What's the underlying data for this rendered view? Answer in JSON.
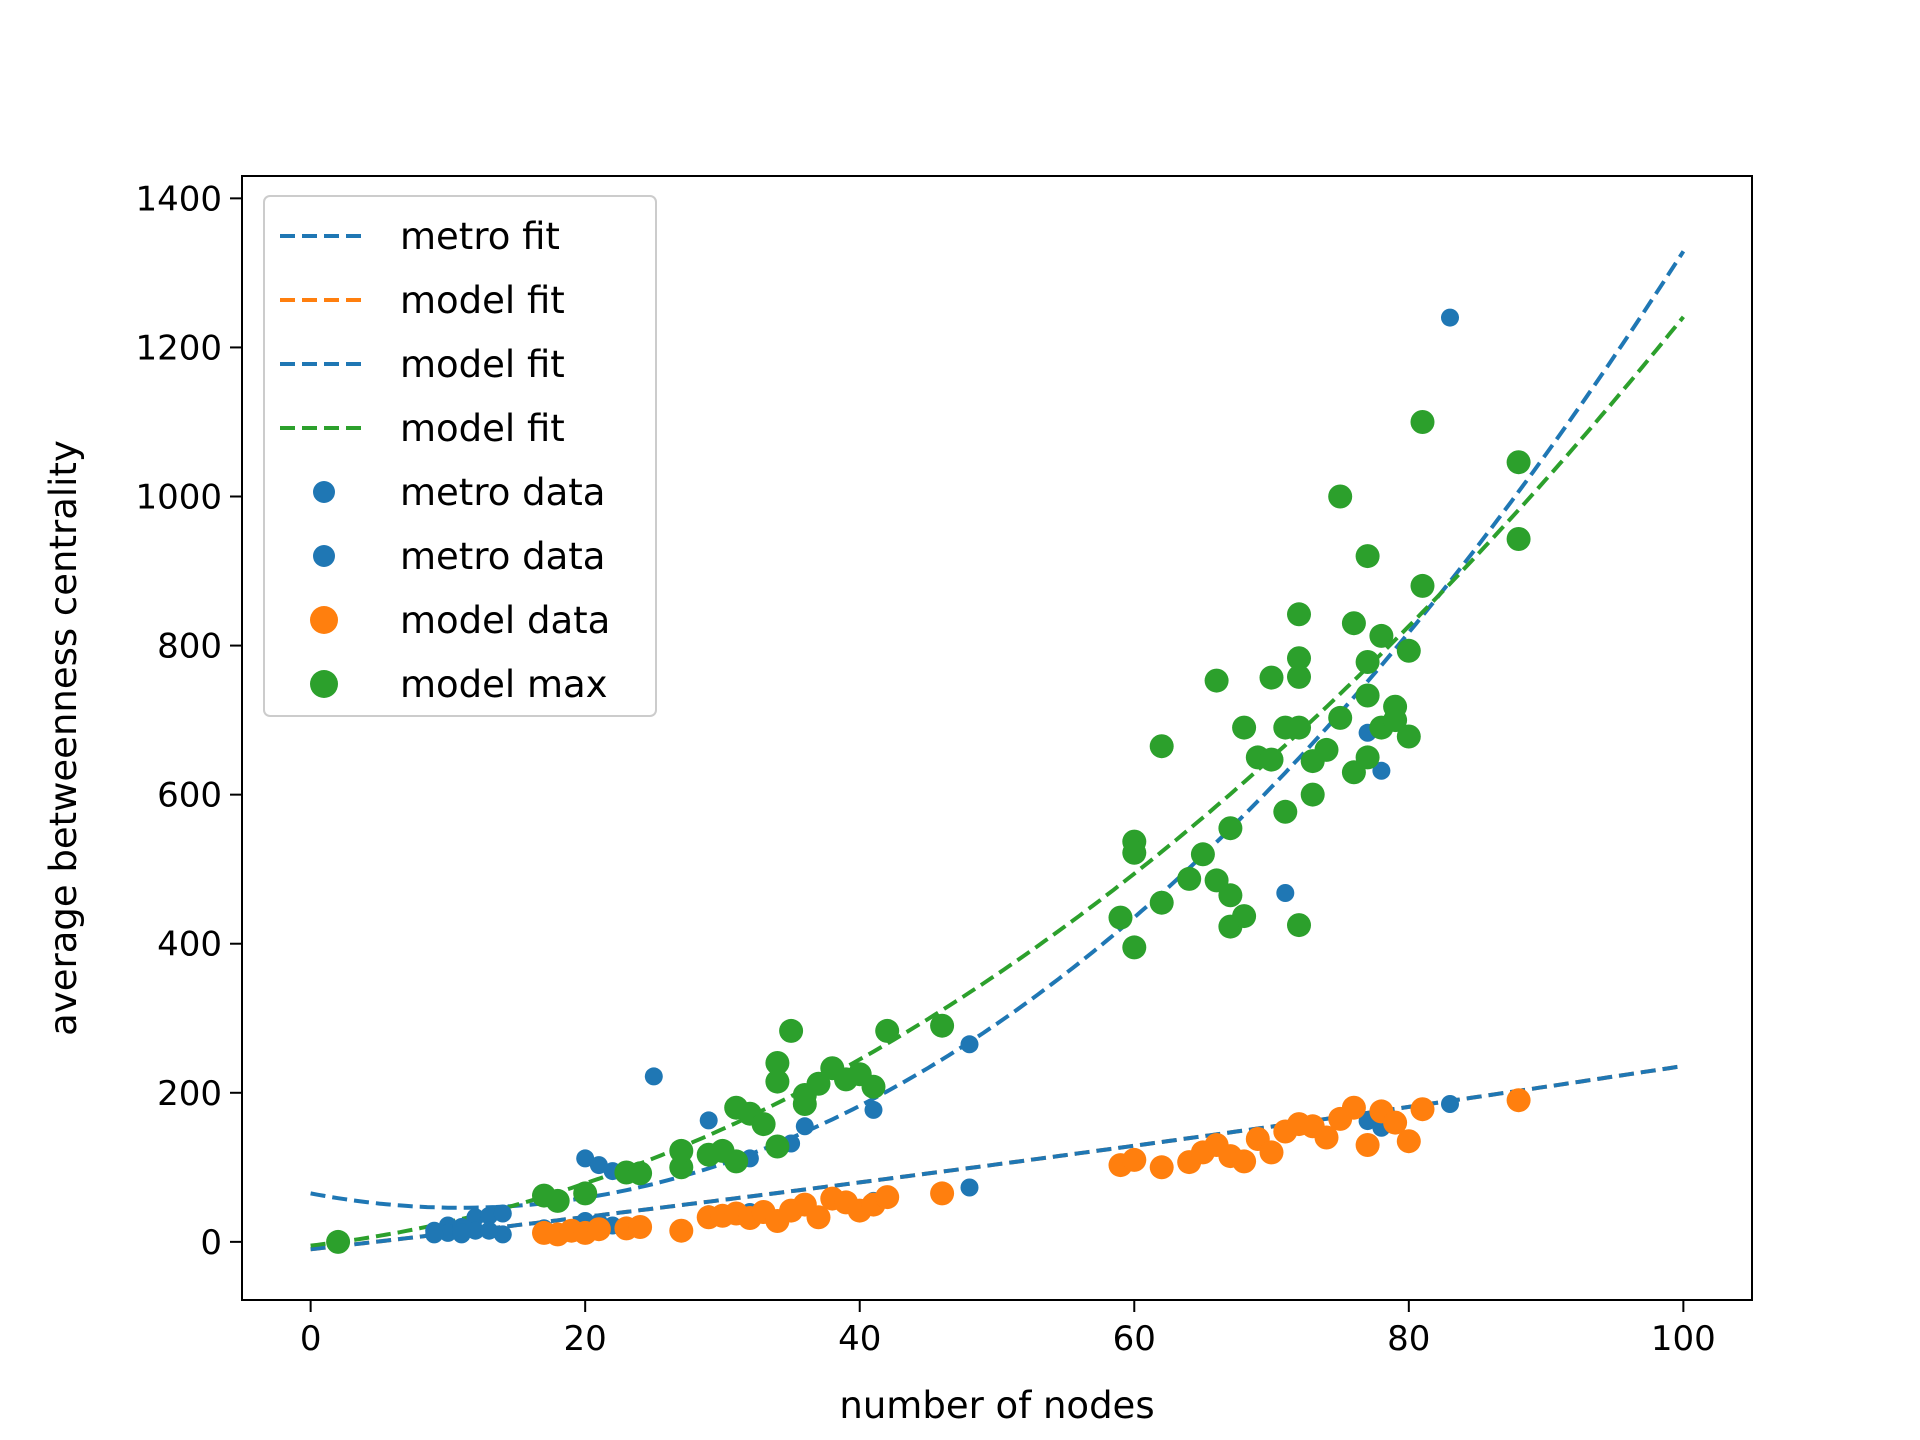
{
  "chart_data": {
    "type": "scatter",
    "title": "",
    "xlabel": "number of nodes",
    "ylabel": "average betweenness centrality",
    "xlim": [
      -5,
      105
    ],
    "ylim": [
      -78,
      1430
    ],
    "xticks": [
      0,
      20,
      40,
      60,
      80,
      100
    ],
    "yticks": [
      0,
      200,
      400,
      600,
      800,
      1000,
      1200,
      1400
    ],
    "grid": false,
    "legend_position": "top-left",
    "series": [
      {
        "name": "metro fit",
        "kind": "line",
        "style": "dashed",
        "color": "#1f77b4",
        "fit": {
          "form": "quadratic",
          "coeffs": [
            0.1617,
            -3.53,
            65
          ]
        },
        "x_range": [
          0,
          100
        ]
      },
      {
        "name": "model fit",
        "kind": "line",
        "style": "dashed",
        "color": "#ff7f0e",
        "fit": {
          "form": "quadratic",
          "coeffs": [
            0.0036,
            2.1,
            -10
          ]
        },
        "x_range": [
          0,
          100
        ]
      },
      {
        "name": "model fit",
        "kind": "line",
        "style": "dashed",
        "color": "#1f77b4",
        "fit": {
          "form": "quadratic",
          "coeffs": [
            0.0036,
            2.1,
            -10
          ]
        },
        "x_range": [
          0,
          100
        ]
      },
      {
        "name": "model fit",
        "kind": "line",
        "style": "dashed",
        "color": "#2ca02c",
        "fit": {
          "form": "quadratic",
          "coeffs": [
            0.1036,
            2.1,
            -5
          ]
        },
        "x_range": [
          0,
          100
        ]
      },
      {
        "name": "metro data",
        "kind": "scatter",
        "color": "#1f77b4",
        "size": "small",
        "x": [
          9,
          10,
          10,
          11,
          11,
          12,
          12,
          13,
          14,
          14,
          17,
          20,
          21,
          22,
          25,
          29,
          32,
          35,
          36,
          41,
          48,
          62,
          71,
          77,
          78,
          83
        ],
        "y": [
          15,
          22,
          12,
          20,
          10,
          33,
          15,
          35,
          38,
          10,
          18,
          112,
          103,
          95,
          222,
          163,
          112,
          132,
          155,
          177,
          265,
          457,
          468,
          683,
          632,
          1240
        ]
      },
      {
        "name": "metro data",
        "kind": "scatter",
        "color": "#1f77b4",
        "size": "small",
        "x": [
          9,
          11,
          13,
          17,
          20,
          21,
          22,
          24,
          29,
          32,
          35,
          36,
          41,
          48,
          62,
          71,
          77,
          78,
          83
        ],
        "y": [
          10,
          13,
          15,
          18,
          28,
          26,
          22,
          22,
          37,
          40,
          42,
          48,
          55,
          73,
          99,
          145,
          162,
          153,
          185
        ]
      },
      {
        "name": "model data",
        "kind": "scatter",
        "color": "#ff7f0e",
        "size": "large",
        "x": [
          17,
          18,
          19,
          20,
          21,
          23,
          24,
          27,
          29,
          30,
          31,
          32,
          33,
          34,
          35,
          36,
          37,
          38,
          39,
          40,
          41,
          42,
          46,
          59,
          60,
          62,
          64,
          65,
          66,
          67,
          68,
          69,
          70,
          71,
          72,
          73,
          74,
          75,
          76,
          77,
          78,
          79,
          80,
          81,
          88
        ],
        "y": [
          12,
          10,
          15,
          12,
          17,
          18,
          20,
          15,
          33,
          35,
          38,
          32,
          40,
          28,
          42,
          50,
          33,
          58,
          53,
          42,
          50,
          60,
          65,
          103,
          110,
          100,
          107,
          120,
          130,
          115,
          108,
          138,
          120,
          148,
          158,
          155,
          140,
          165,
          180,
          130,
          175,
          160,
          135,
          178,
          190
        ]
      },
      {
        "name": "model max",
        "kind": "scatter",
        "color": "#2ca02c",
        "size": "large",
        "x": [
          2,
          17,
          18,
          20,
          23,
          24,
          27,
          27,
          29,
          30,
          31,
          31,
          32,
          33,
          34,
          34,
          34,
          35,
          36,
          36,
          37,
          38,
          39,
          40,
          41,
          42,
          46,
          59,
          60,
          60,
          60,
          62,
          62,
          64,
          65,
          66,
          66,
          67,
          67,
          67,
          68,
          68,
          69,
          70,
          70,
          71,
          71,
          72,
          72,
          72,
          72,
          72,
          73,
          73,
          74,
          75,
          75,
          76,
          76,
          77,
          77,
          77,
          77,
          78,
          78,
          79,
          79,
          80,
          80,
          81,
          81,
          88,
          88
        ],
        "y": [
          0,
          62,
          55,
          65,
          93,
          92,
          100,
          122,
          117,
          122,
          180,
          108,
          172,
          158,
          240,
          215,
          128,
          283,
          185,
          197,
          212,
          233,
          218,
          225,
          208,
          283,
          290,
          435,
          537,
          522,
          395,
          665,
          455,
          487,
          520,
          753,
          485,
          555,
          465,
          423,
          690,
          437,
          650,
          757,
          647,
          577,
          690,
          783,
          842,
          690,
          758,
          425,
          645,
          600,
          660,
          1000,
          703,
          830,
          630,
          920,
          778,
          733,
          650,
          813,
          690,
          718,
          700,
          678,
          793,
          880,
          1100,
          1046,
          943
        ]
      }
    ]
  }
}
